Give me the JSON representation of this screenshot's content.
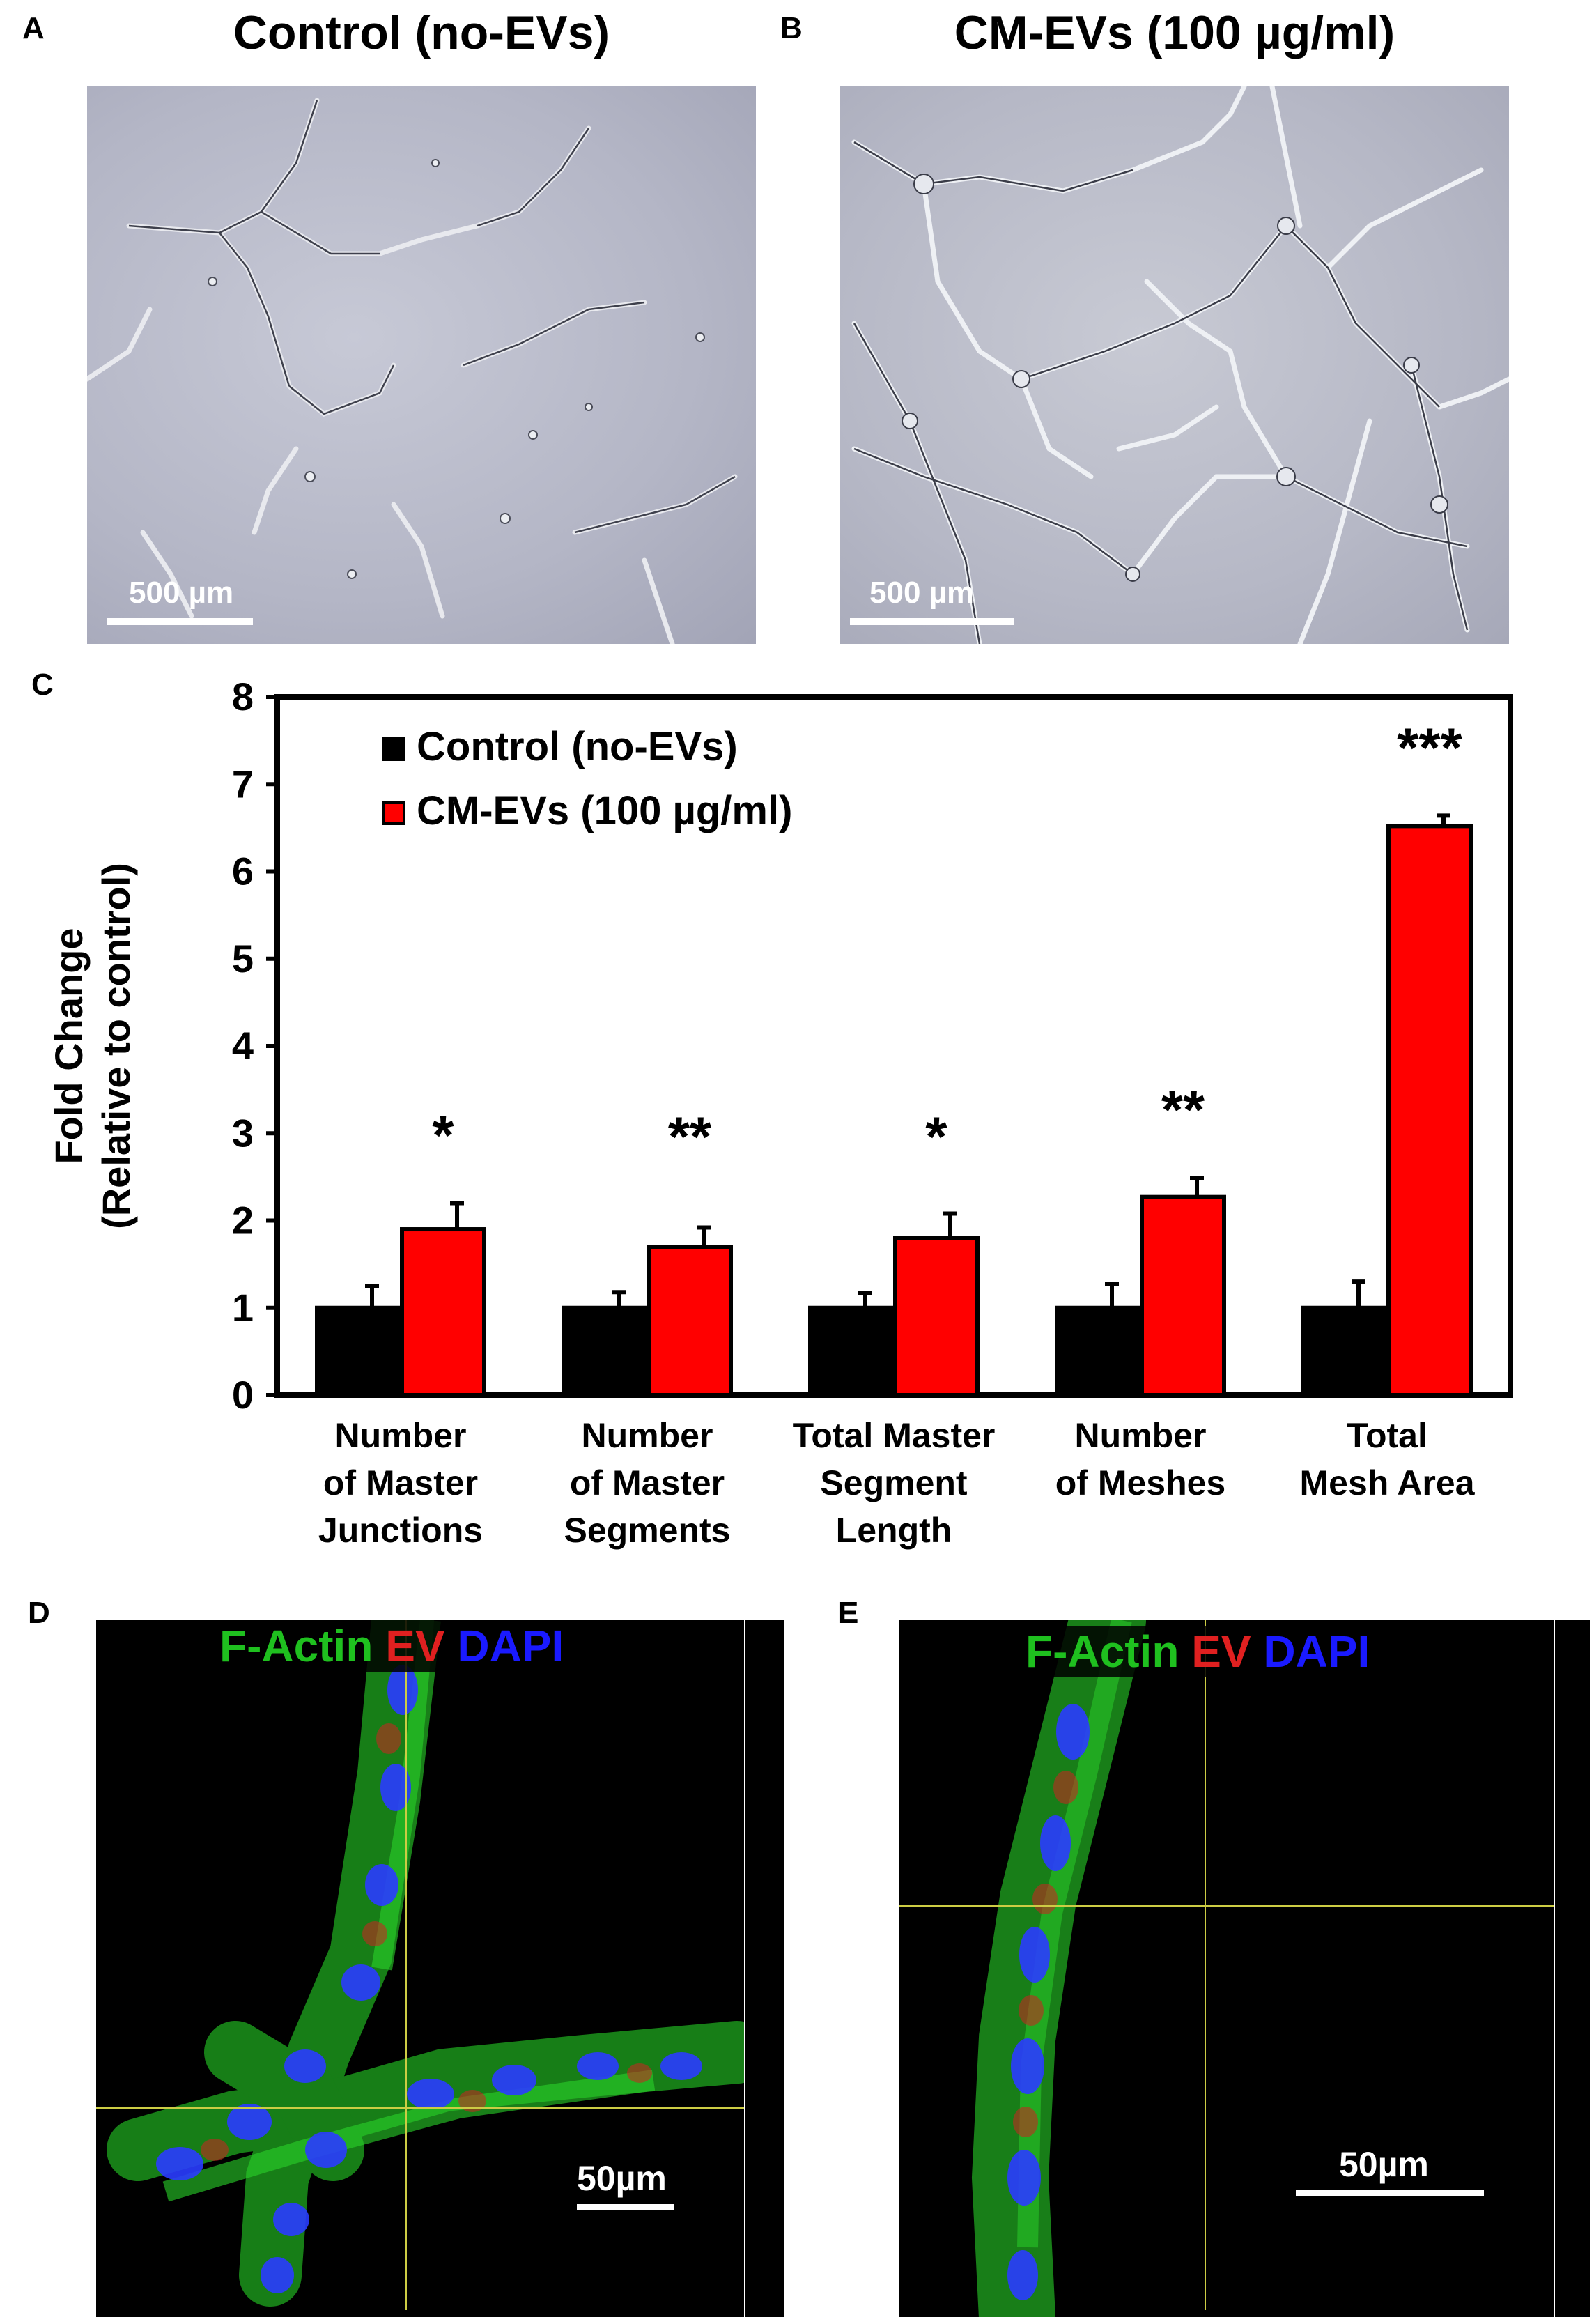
{
  "panels": {
    "a": {
      "letter": "A",
      "title": "Control (no-EVs)",
      "scale": "500 µm"
    },
    "b": {
      "letter": "B",
      "title": "CM-EVs (100 µg/ml)",
      "scale": "500 µm"
    },
    "c": {
      "letter": "C"
    },
    "d": {
      "letter": "D",
      "scale": "50µm"
    },
    "e": {
      "letter": "E",
      "scale": "50µm"
    }
  },
  "stain_labels": {
    "factin": "F-Actin",
    "ev": "EV",
    "dapi": "DAPI"
  },
  "stain_colors": {
    "factin": "#1fc01f",
    "ev": "#e02020",
    "dapi": "#1a1aff"
  },
  "chart_data": {
    "type": "bar",
    "ylabel_line1": "Fold Change",
    "ylabel_line2": "(Relative to control)",
    "ylim": [
      0,
      8
    ],
    "yticks": [
      0,
      1,
      2,
      3,
      4,
      5,
      6,
      7,
      8
    ],
    "grid": false,
    "legend_position": "top-left",
    "categories": [
      [
        "Number",
        "of Master",
        "Junctions"
      ],
      [
        "Number",
        "of Master",
        "Segments"
      ],
      [
        "Total Master",
        "Segment",
        "Length"
      ],
      [
        "Number",
        "of Meshes"
      ],
      [
        "Total",
        "Mesh Area"
      ]
    ],
    "series": [
      {
        "name": "Control (no-EVs)",
        "color": "#000000",
        "values": [
          1,
          1,
          1,
          1,
          1
        ],
        "errors": [
          0.25,
          0.18,
          0.17,
          0.27,
          0.3
        ]
      },
      {
        "name": "CM-EVs (100 µg/ml)",
        "color": "#ff0000",
        "values": [
          1.9,
          1.7,
          1.8,
          2.27,
          6.52
        ],
        "errors": [
          0.3,
          0.22,
          0.28,
          0.22,
          0.12
        ]
      }
    ],
    "significance": [
      "*",
      "**",
      "*",
      "**",
      "***"
    ]
  }
}
